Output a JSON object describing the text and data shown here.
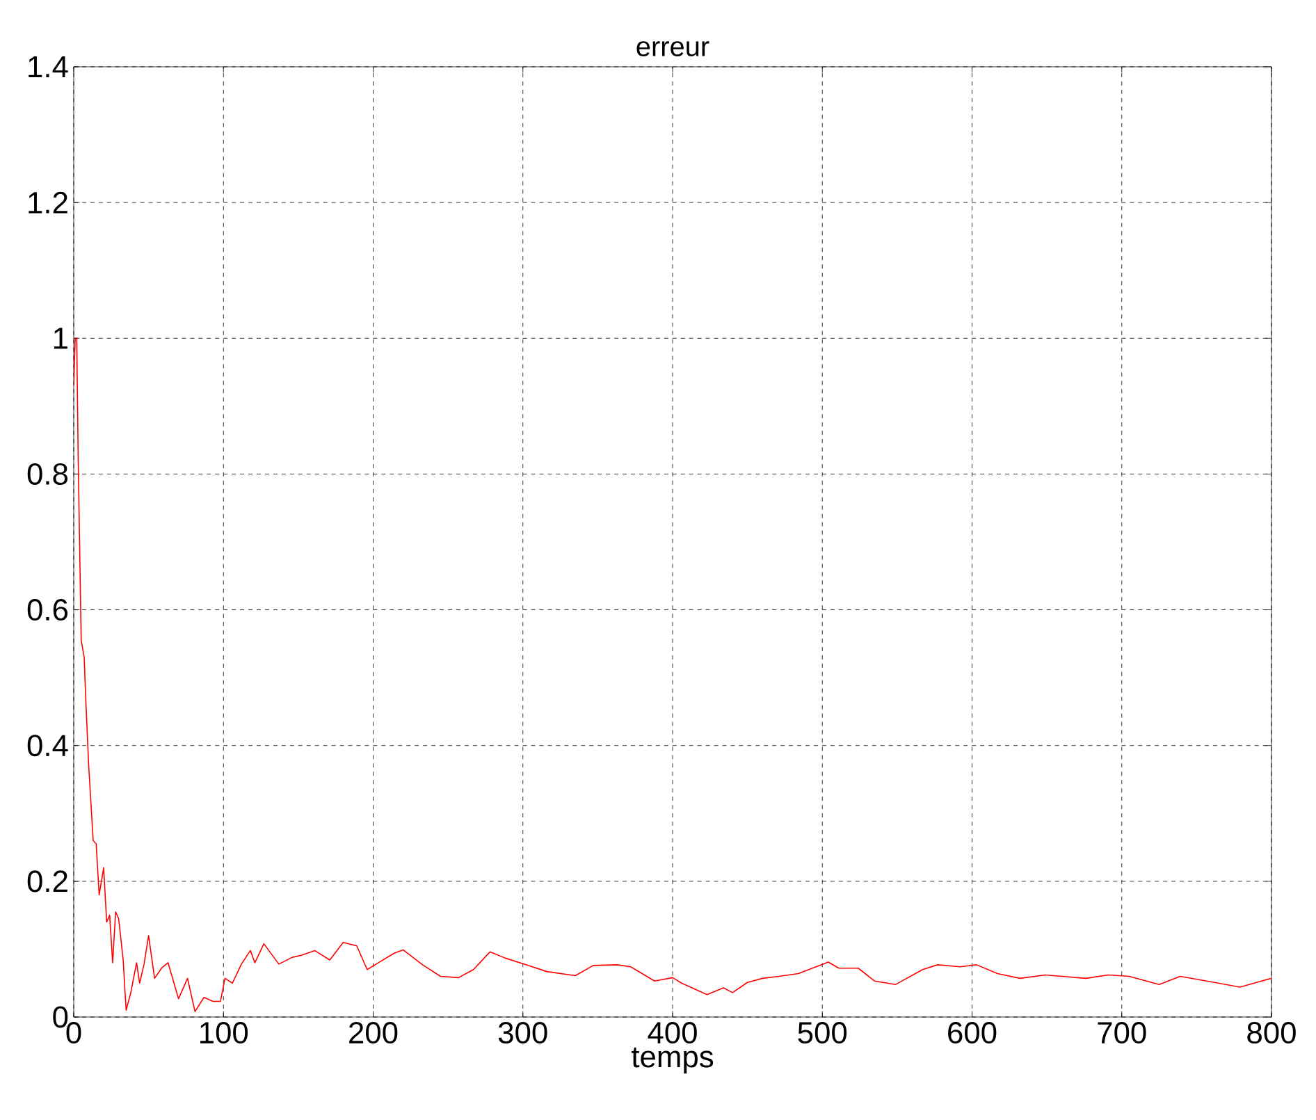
{
  "chart_data": {
    "type": "line",
    "title": "erreur",
    "xlabel": "temps",
    "xlim": [
      0,
      800
    ],
    "ylim": [
      0,
      1.4
    ],
    "xticks": [
      0,
      100,
      200,
      300,
      400,
      500,
      600,
      700,
      800
    ],
    "yticks": [
      0,
      0.2,
      0.4,
      0.6,
      0.8,
      1,
      1.2,
      1.4
    ],
    "grid": true,
    "line_style": "solid",
    "series": [
      {
        "color": "#ff0000",
        "x": [
          0,
          1,
          2,
          3,
          5,
          7,
          8,
          10,
          13,
          15,
          17,
          20,
          22,
          24,
          26,
          28,
          30,
          33,
          35,
          38,
          42,
          44,
          47,
          50,
          54,
          59,
          63,
          70,
          76,
          81,
          87,
          93,
          98,
          101,
          106,
          112,
          118,
          121,
          127,
          137,
          146,
          152,
          161,
          171,
          180,
          189,
          196,
          202,
          214,
          220,
          233,
          245,
          257,
          267,
          278,
          288,
          301,
          316,
          335,
          347,
          363,
          372,
          388,
          400,
          406,
          423,
          434,
          440,
          450,
          460,
          471,
          484,
          504,
          511,
          524,
          535,
          549,
          567,
          577,
          592,
          603,
          617,
          632,
          649,
          676,
          691,
          705,
          725,
          739,
          762,
          779,
          790,
          800
        ],
        "values": [
          0.93,
          1.0,
          1.0,
          0.82,
          0.555,
          0.53,
          0.47,
          0.37,
          0.26,
          0.255,
          0.18,
          0.22,
          0.14,
          0.15,
          0.08,
          0.155,
          0.145,
          0.085,
          0.01,
          0.035,
          0.08,
          0.05,
          0.078,
          0.12,
          0.057,
          0.073,
          0.08,
          0.027,
          0.057,
          0.008,
          0.029,
          0.023,
          0.023,
          0.057,
          0.05,
          0.078,
          0.098,
          0.08,
          0.108,
          0.078,
          0.088,
          0.091,
          0.098,
          0.084,
          0.11,
          0.105,
          0.07,
          0.078,
          0.094,
          0.099,
          0.077,
          0.06,
          0.058,
          0.07,
          0.096,
          0.087,
          0.078,
          0.067,
          0.061,
          0.076,
          0.077,
          0.074,
          0.053,
          0.058,
          0.05,
          0.033,
          0.043,
          0.036,
          0.051,
          0.057,
          0.06,
          0.064,
          0.081,
          0.072,
          0.072,
          0.053,
          0.048,
          0.07,
          0.077,
          0.074,
          0.077,
          0.064,
          0.057,
          0.062,
          0.057,
          0.062,
          0.06,
          0.048,
          0.06,
          0.051,
          0.044,
          0.051,
          0.057
        ]
      }
    ]
  }
}
